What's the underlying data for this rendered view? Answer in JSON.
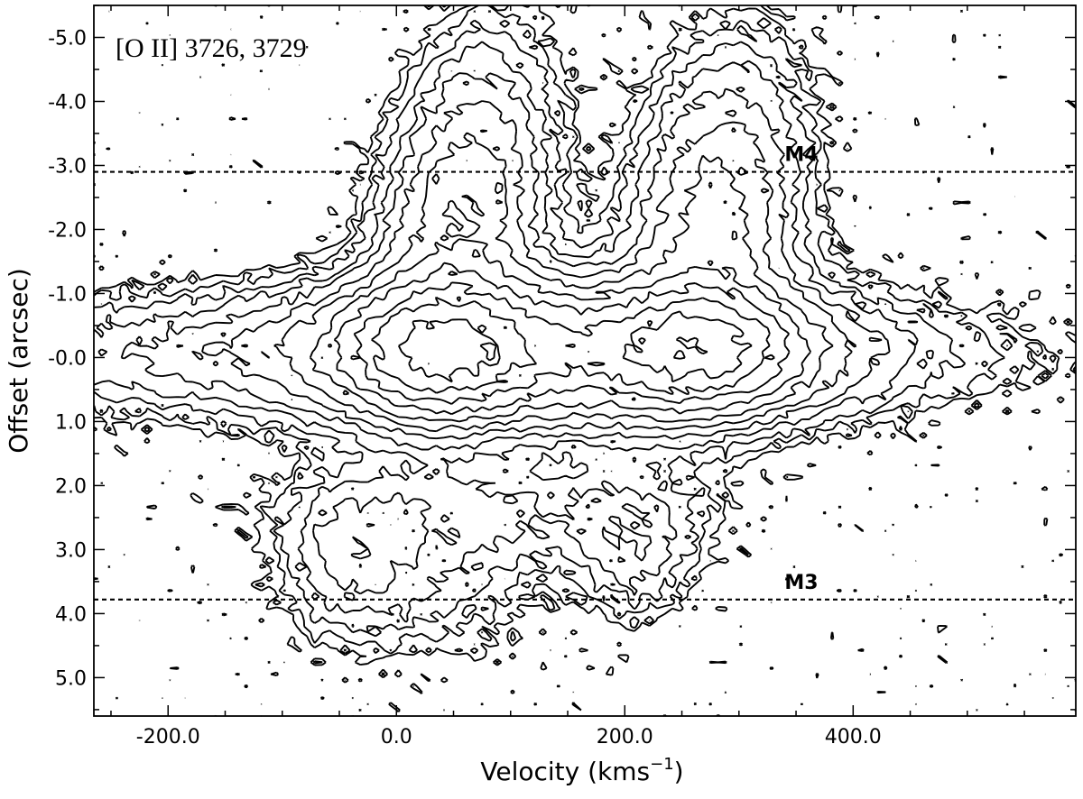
{
  "chart_data": {
    "type": "contour",
    "annotation": "[O II] 3726, 3729",
    "xlabel": "Velocity (kms",
    "xlabel_sup": "−1",
    "xlabel_close": ")",
    "ylabel": "Offset (arcsec)",
    "xlim": [
      -265,
      595
    ],
    "ylim": [
      5.6,
      -5.5
    ],
    "y_inverted": true,
    "grid": false,
    "x_ticks": [
      {
        "value": -200,
        "label": "-200.0"
      },
      {
        "value": 0,
        "label": "0.0"
      },
      {
        "value": 200,
        "label": "200.0"
      },
      {
        "value": 400,
        "label": "400.0"
      }
    ],
    "y_ticks": [
      {
        "value": -5,
        "label": "-5.0"
      },
      {
        "value": -4,
        "label": "-4.0"
      },
      {
        "value": -3,
        "label": "-3.0"
      },
      {
        "value": -2,
        "label": "-2.0"
      },
      {
        "value": -1,
        "label": "-1.0"
      },
      {
        "value": 0,
        "label": "-0.0"
      },
      {
        "value": 1,
        "label": "1.0"
      },
      {
        "value": 2,
        "label": "2.0"
      },
      {
        "value": 3,
        "label": "3.0"
      },
      {
        "value": 4,
        "label": "4.0"
      },
      {
        "value": 5,
        "label": "5.0"
      }
    ],
    "reference_lines": [
      {
        "name": "M4",
        "y": -2.9
      },
      {
        "name": "M3",
        "y": 3.78
      }
    ],
    "emission_components": [
      {
        "velocity": 30,
        "offset_peak": -0.2
      },
      {
        "velocity": 260,
        "offset_peak": -0.2
      }
    ],
    "contour_levels": 12
  }
}
